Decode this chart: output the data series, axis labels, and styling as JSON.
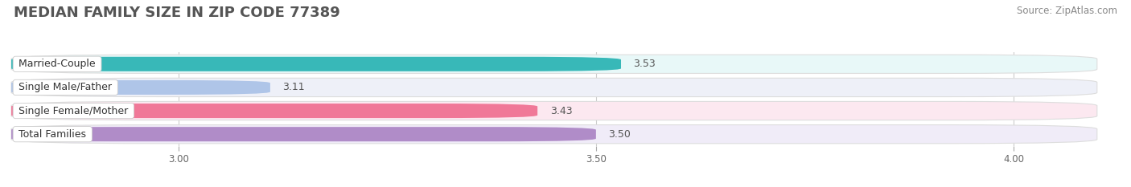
{
  "title": "MEDIAN FAMILY SIZE IN ZIP CODE 77389",
  "source": "Source: ZipAtlas.com",
  "categories": [
    "Married-Couple",
    "Single Male/Father",
    "Single Female/Mother",
    "Total Families"
  ],
  "values": [
    3.53,
    3.11,
    3.43,
    3.5
  ],
  "bar_colors": [
    "#38b8b8",
    "#afc5e8",
    "#f07898",
    "#b08cc8"
  ],
  "pill_colors": [
    "#e8f8f8",
    "#eef0f8",
    "#fce8f0",
    "#f0ecf8"
  ],
  "background_color": "#ffffff",
  "xmin": 2.8,
  "xmax": 4.1,
  "xticks": [
    3.0,
    3.5,
    4.0
  ],
  "xtick_labels": [
    "3.00",
    "3.50",
    "4.00"
  ],
  "title_fontsize": 13,
  "label_fontsize": 9,
  "value_fontsize": 9,
  "source_fontsize": 8.5
}
